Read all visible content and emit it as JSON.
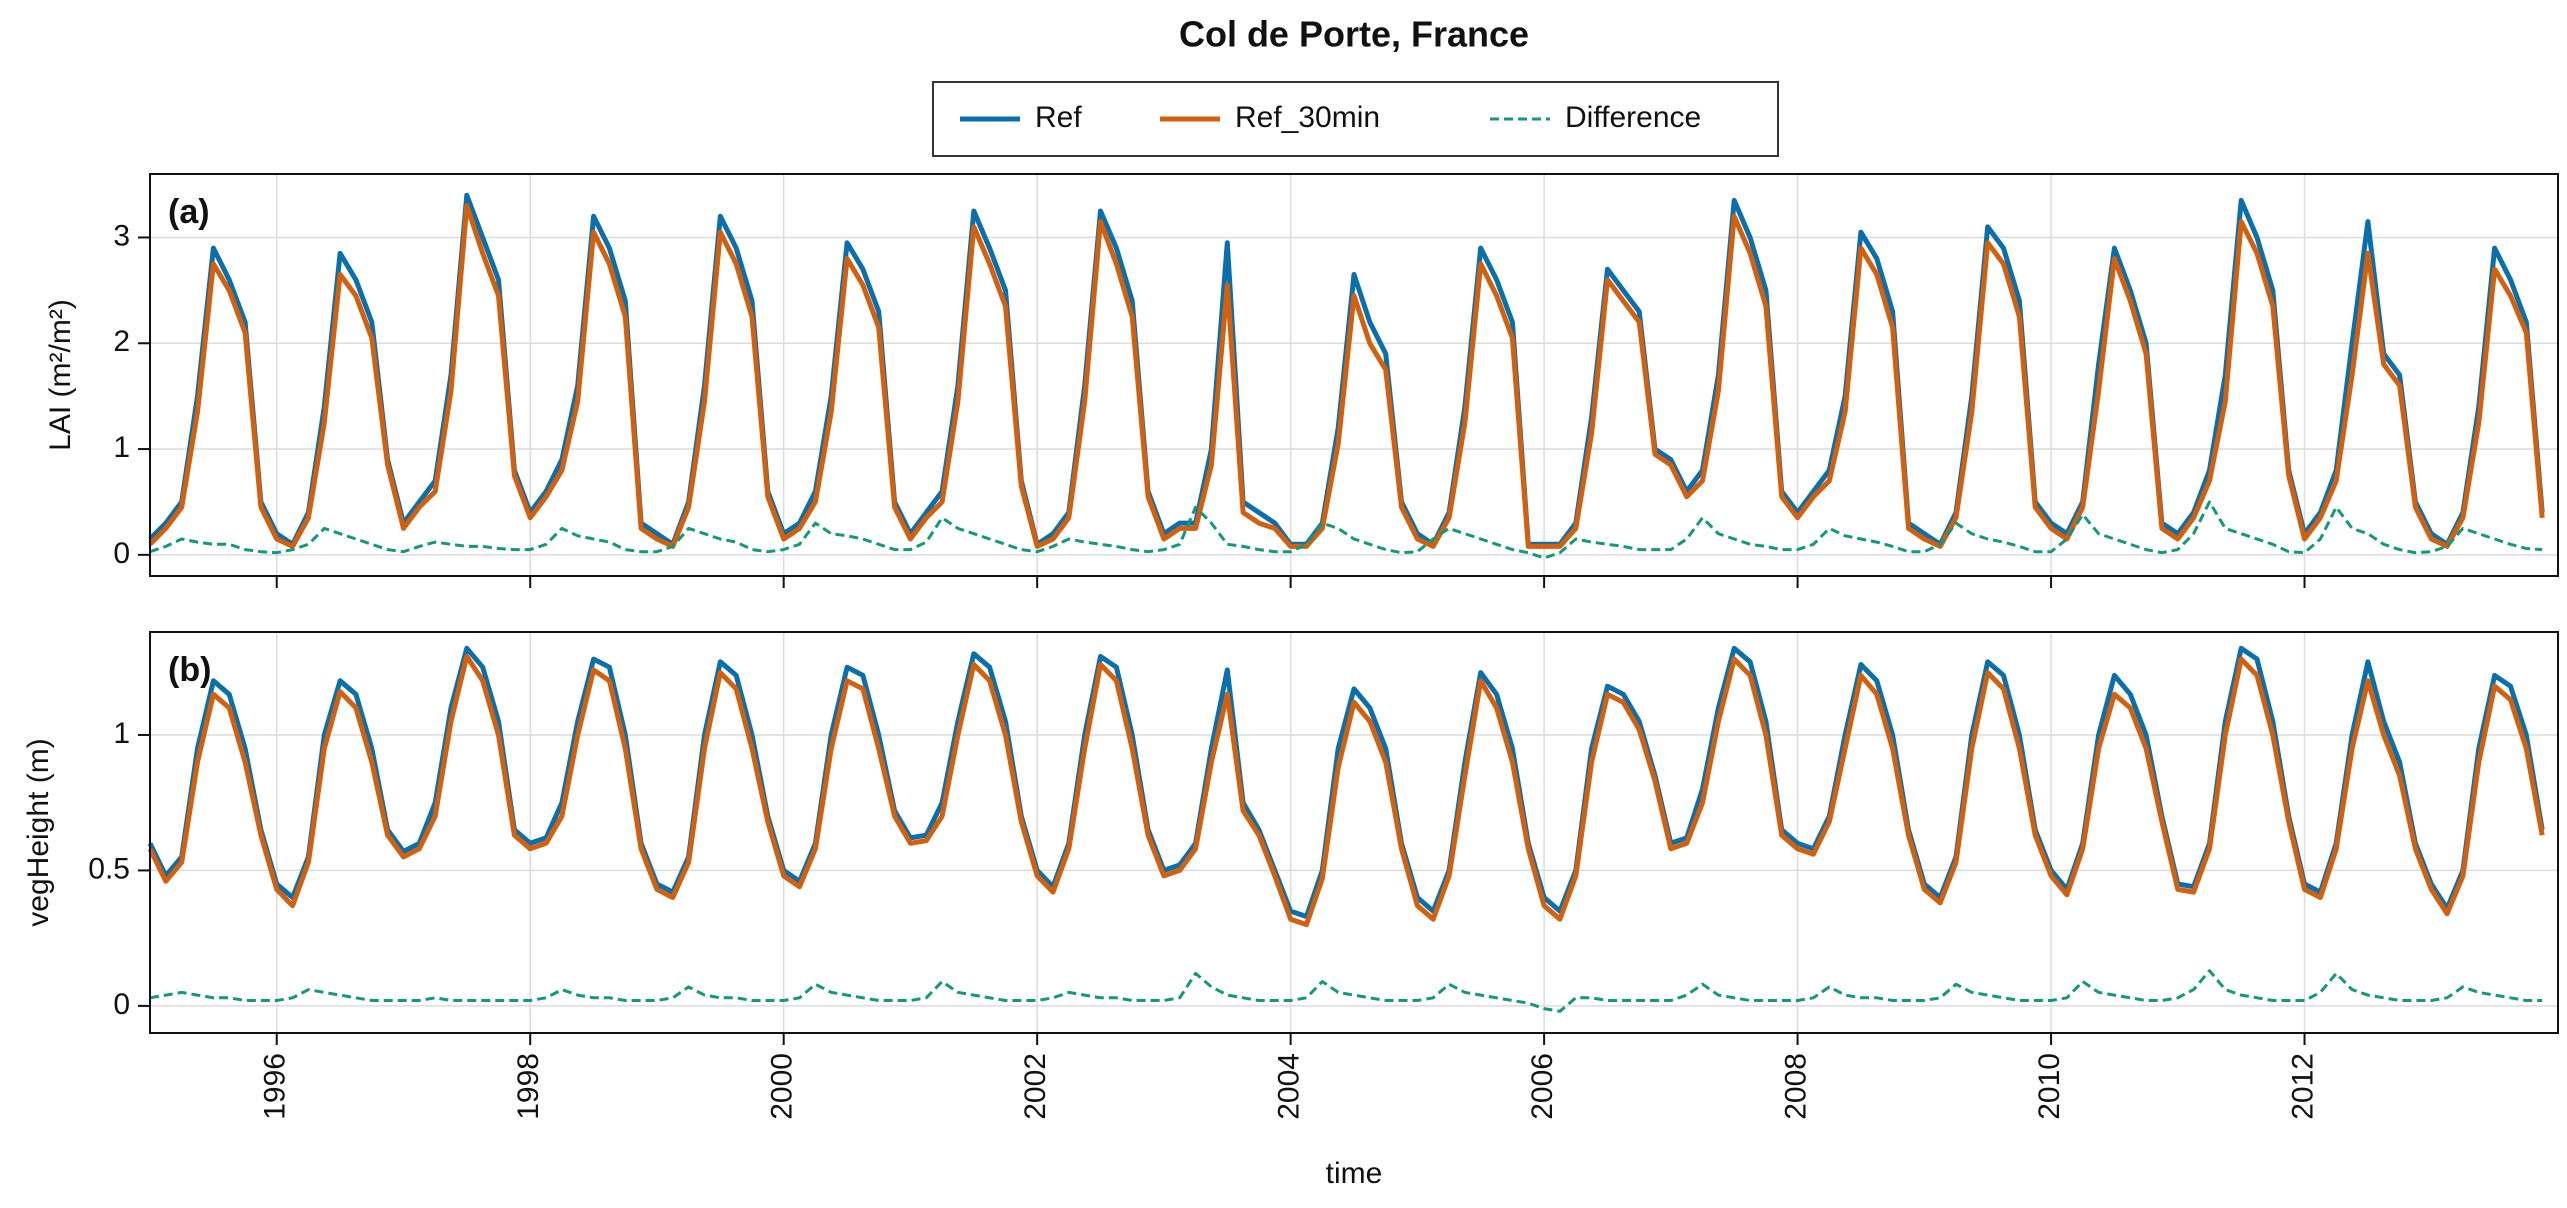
{
  "chart_data": {
    "type": "line",
    "title": "Col de Porte, France",
    "xlabel": "time",
    "legend": "top",
    "xlim": [
      1995,
      2014
    ],
    "xticks": [
      1996,
      1998,
      2000,
      2002,
      2004,
      2006,
      2008,
      2010,
      2012
    ],
    "grid": true,
    "series": [
      {
        "name": "Ref",
        "color": "#0b6fab",
        "linestyle": "solid"
      },
      {
        "name": "Ref_30min",
        "color": "#d2600e",
        "linestyle": "solid"
      },
      {
        "name": "Difference",
        "color": "#11997a",
        "linestyle": "dashed"
      }
    ],
    "x": [
      1995,
      1995.125,
      1995.25,
      1995.375,
      1995.5,
      1995.625,
      1995.75,
      1995.875,
      1996,
      1996.125,
      1996.25,
      1996.375,
      1996.5,
      1996.625,
      1996.75,
      1996.875,
      1997,
      1997.125,
      1997.25,
      1997.375,
      1997.5,
      1997.625,
      1997.75,
      1997.875,
      1998,
      1998.125,
      1998.25,
      1998.375,
      1998.5,
      1998.625,
      1998.75,
      1998.875,
      1999,
      1999.125,
      1999.25,
      1999.375,
      1999.5,
      1999.625,
      1999.75,
      1999.875,
      2000,
      2000.125,
      2000.25,
      2000.375,
      2000.5,
      2000.625,
      2000.75,
      2000.875,
      2001,
      2001.125,
      2001.25,
      2001.375,
      2001.5,
      2001.625,
      2001.75,
      2001.875,
      2002,
      2002.125,
      2002.25,
      2002.375,
      2002.5,
      2002.625,
      2002.75,
      2002.875,
      2003,
      2003.125,
      2003.25,
      2003.375,
      2003.5,
      2003.625,
      2003.75,
      2003.875,
      2004,
      2004.125,
      2004.25,
      2004.375,
      2004.5,
      2004.625,
      2004.75,
      2004.875,
      2005,
      2005.125,
      2005.25,
      2005.375,
      2005.5,
      2005.625,
      2005.75,
      2005.875,
      2006,
      2006.125,
      2006.25,
      2006.375,
      2006.5,
      2006.625,
      2006.75,
      2006.875,
      2007,
      2007.125,
      2007.25,
      2007.375,
      2007.5,
      2007.625,
      2007.75,
      2007.875,
      2008,
      2008.125,
      2008.25,
      2008.375,
      2008.5,
      2008.625,
      2008.75,
      2008.875,
      2009,
      2009.125,
      2009.25,
      2009.375,
      2009.5,
      2009.625,
      2009.75,
      2009.875,
      2010,
      2010.125,
      2010.25,
      2010.375,
      2010.5,
      2010.625,
      2010.75,
      2010.875,
      2011,
      2011.125,
      2011.25,
      2011.375,
      2011.5,
      2011.625,
      2011.75,
      2011.875,
      2012,
      2012.125,
      2012.25,
      2012.375,
      2012.5,
      2012.625,
      2012.75,
      2012.875,
      2013,
      2013.125,
      2013.25,
      2013.375,
      2013.5,
      2013.625,
      2013.75,
      2013.875
    ],
    "panels": [
      {
        "label": "(a)",
        "ylabel": "LAI (m²/m²)",
        "ylim": [
          -0.2,
          3.6
        ],
        "yticks": [
          0,
          1,
          2,
          3
        ],
        "values": [
          [
            0.15,
            0.3,
            0.5,
            1.5,
            2.9,
            2.6,
            2.2,
            0.5,
            0.2,
            0.1,
            0.4,
            1.4,
            2.85,
            2.6,
            2.2,
            0.9,
            0.3,
            0.5,
            0.7,
            1.7,
            3.4,
            3.0,
            2.6,
            0.8,
            0.4,
            0.6,
            0.9,
            1.6,
            3.2,
            2.9,
            2.4,
            0.3,
            0.2,
            0.1,
            0.5,
            1.6,
            3.2,
            2.9,
            2.4,
            0.6,
            0.2,
            0.3,
            0.6,
            1.5,
            2.95,
            2.7,
            2.3,
            0.5,
            0.2,
            0.4,
            0.6,
            1.6,
            3.25,
            2.9,
            2.5,
            0.7,
            0.1,
            0.2,
            0.4,
            1.6,
            3.25,
            2.9,
            2.4,
            0.6,
            0.2,
            0.3,
            0.3,
            1.0,
            2.95,
            0.5,
            0.4,
            0.3,
            0.1,
            0.1,
            0.3,
            1.2,
            2.65,
            2.2,
            1.9,
            0.5,
            0.2,
            0.1,
            0.4,
            1.4,
            2.9,
            2.6,
            2.2,
            0.1,
            0.1,
            0.1,
            0.3,
            1.3,
            2.7,
            2.5,
            2.3,
            1.0,
            0.9,
            0.6,
            0.8,
            1.7,
            3.35,
            3.0,
            2.5,
            0.6,
            0.4,
            0.6,
            0.8,
            1.5,
            3.05,
            2.8,
            2.3,
            0.3,
            0.2,
            0.1,
            0.4,
            1.5,
            3.1,
            2.9,
            2.4,
            0.5,
            0.3,
            0.2,
            0.5,
            1.8,
            2.9,
            2.5,
            2.0,
            0.3,
            0.2,
            0.4,
            0.8,
            1.7,
            3.35,
            3.0,
            2.5,
            0.8,
            0.2,
            0.4,
            0.8,
            2.0,
            3.15,
            1.9,
            1.7,
            0.5,
            0.2,
            0.1,
            0.4,
            1.4,
            2.9,
            2.6,
            2.2,
            0.4
          ],
          [
            0.1,
            0.25,
            0.45,
            1.35,
            2.75,
            2.5,
            2.1,
            0.45,
            0.15,
            0.08,
            0.35,
            1.25,
            2.65,
            2.45,
            2.05,
            0.85,
            0.25,
            0.45,
            0.6,
            1.55,
            3.3,
            2.85,
            2.45,
            0.75,
            0.35,
            0.55,
            0.8,
            1.45,
            3.05,
            2.75,
            2.25,
            0.25,
            0.15,
            0.08,
            0.45,
            1.45,
            3.05,
            2.75,
            2.25,
            0.55,
            0.15,
            0.25,
            0.5,
            1.35,
            2.8,
            2.55,
            2.15,
            0.45,
            0.15,
            0.35,
            0.5,
            1.45,
            3.1,
            2.75,
            2.35,
            0.65,
            0.08,
            0.15,
            0.35,
            1.45,
            3.15,
            2.75,
            2.25,
            0.55,
            0.15,
            0.25,
            0.25,
            0.85,
            2.55,
            0.4,
            0.3,
            0.25,
            0.08,
            0.08,
            0.25,
            1.05,
            2.45,
            2.0,
            1.75,
            0.45,
            0.15,
            0.08,
            0.35,
            1.25,
            2.75,
            2.45,
            2.05,
            0.08,
            0.08,
            0.08,
            0.25,
            1.15,
            2.6,
            2.4,
            2.2,
            0.95,
            0.85,
            0.55,
            0.7,
            1.55,
            3.2,
            2.85,
            2.35,
            0.55,
            0.35,
            0.55,
            0.7,
            1.35,
            2.9,
            2.65,
            2.15,
            0.25,
            0.15,
            0.08,
            0.35,
            1.35,
            2.95,
            2.75,
            2.25,
            0.45,
            0.25,
            0.15,
            0.45,
            1.55,
            2.8,
            2.4,
            1.9,
            0.25,
            0.15,
            0.35,
            0.7,
            1.45,
            3.15,
            2.85,
            2.35,
            0.75,
            0.15,
            0.35,
            0.7,
            1.7,
            2.85,
            1.8,
            1.6,
            0.45,
            0.15,
            0.08,
            0.35,
            1.25,
            2.7,
            2.45,
            2.1,
            0.35
          ],
          [
            0.03,
            0.08,
            0.15,
            0.12,
            0.1,
            0.1,
            0.05,
            0.03,
            0.02,
            0.05,
            0.1,
            0.25,
            0.2,
            0.15,
            0.1,
            0.05,
            0.03,
            0.08,
            0.12,
            0.1,
            0.08,
            0.08,
            0.06,
            0.05,
            0.05,
            0.1,
            0.25,
            0.18,
            0.15,
            0.12,
            0.05,
            0.03,
            0.03,
            0.08,
            0.25,
            0.2,
            0.15,
            0.12,
            0.05,
            0.03,
            0.05,
            0.1,
            0.3,
            0.2,
            0.18,
            0.15,
            0.1,
            0.05,
            0.05,
            0.12,
            0.35,
            0.25,
            0.2,
            0.15,
            0.1,
            0.05,
            0.03,
            0.08,
            0.15,
            0.12,
            0.1,
            0.08,
            0.05,
            0.03,
            0.05,
            0.1,
            0.45,
            0.3,
            0.1,
            0.08,
            0.05,
            0.03,
            0.03,
            0.1,
            0.3,
            0.25,
            0.15,
            0.1,
            0.05,
            0.02,
            0.03,
            0.15,
            0.25,
            0.2,
            0.15,
            0.1,
            0.05,
            0.02,
            -0.03,
            0.02,
            0.15,
            0.12,
            0.1,
            0.08,
            0.05,
            0.05,
            0.05,
            0.15,
            0.35,
            0.2,
            0.15,
            0.1,
            0.08,
            0.05,
            0.05,
            0.1,
            0.25,
            0.18,
            0.15,
            0.12,
            0.08,
            0.03,
            0.03,
            0.1,
            0.3,
            0.2,
            0.15,
            0.12,
            0.08,
            0.03,
            0.03,
            0.15,
            0.38,
            0.2,
            0.15,
            0.1,
            0.05,
            0.02,
            0.05,
            0.2,
            0.5,
            0.25,
            0.2,
            0.15,
            0.1,
            0.03,
            0.02,
            0.15,
            0.45,
            0.25,
            0.2,
            0.1,
            0.05,
            0.02,
            0.03,
            0.08,
            0.25,
            0.2,
            0.15,
            0.1,
            0.06,
            0.05
          ]
        ]
      },
      {
        "label": "(b)",
        "ylabel": "vegHeight (m)",
        "ylim": [
          -0.1,
          1.38
        ],
        "yticks": [
          0,
          0.5,
          1
        ],
        "values": [
          [
            0.6,
            0.48,
            0.55,
            0.95,
            1.2,
            1.15,
            0.95,
            0.65,
            0.45,
            0.4,
            0.55,
            1.0,
            1.2,
            1.15,
            0.95,
            0.65,
            0.57,
            0.6,
            0.75,
            1.1,
            1.32,
            1.25,
            1.05,
            0.65,
            0.6,
            0.62,
            0.75,
            1.05,
            1.28,
            1.25,
            1.0,
            0.6,
            0.45,
            0.42,
            0.55,
            1.0,
            1.27,
            1.22,
            1.0,
            0.7,
            0.5,
            0.46,
            0.6,
            1.0,
            1.25,
            1.22,
            1.0,
            0.72,
            0.62,
            0.63,
            0.75,
            1.05,
            1.3,
            1.25,
            1.05,
            0.7,
            0.5,
            0.44,
            0.6,
            1.0,
            1.29,
            1.25,
            1.0,
            0.65,
            0.5,
            0.52,
            0.6,
            0.95,
            1.24,
            0.75,
            0.65,
            0.5,
            0.35,
            0.33,
            0.5,
            0.95,
            1.17,
            1.1,
            0.95,
            0.6,
            0.4,
            0.35,
            0.5,
            0.9,
            1.23,
            1.15,
            0.95,
            0.6,
            0.4,
            0.35,
            0.5,
            0.95,
            1.18,
            1.15,
            1.05,
            0.85,
            0.6,
            0.62,
            0.8,
            1.1,
            1.32,
            1.27,
            1.05,
            0.65,
            0.6,
            0.58,
            0.7,
            1.0,
            1.26,
            1.2,
            1.0,
            0.65,
            0.45,
            0.4,
            0.55,
            1.0,
            1.27,
            1.22,
            1.0,
            0.65,
            0.5,
            0.43,
            0.6,
            1.0,
            1.22,
            1.15,
            1.0,
            0.7,
            0.45,
            0.44,
            0.6,
            1.05,
            1.32,
            1.28,
            1.05,
            0.7,
            0.45,
            0.42,
            0.6,
            1.0,
            1.27,
            1.05,
            0.9,
            0.6,
            0.45,
            0.36,
            0.5,
            0.95,
            1.22,
            1.18,
            1.0,
            0.65
          ],
          [
            0.58,
            0.46,
            0.53,
            0.9,
            1.15,
            1.1,
            0.9,
            0.63,
            0.43,
            0.37,
            0.53,
            0.95,
            1.16,
            1.1,
            0.9,
            0.63,
            0.55,
            0.58,
            0.7,
            1.05,
            1.29,
            1.2,
            1.0,
            0.63,
            0.58,
            0.6,
            0.7,
            1.0,
            1.24,
            1.2,
            0.95,
            0.58,
            0.43,
            0.4,
            0.53,
            0.95,
            1.23,
            1.17,
            0.95,
            0.68,
            0.48,
            0.44,
            0.58,
            0.95,
            1.2,
            1.17,
            0.95,
            0.7,
            0.6,
            0.61,
            0.7,
            1.0,
            1.26,
            1.2,
            1.0,
            0.68,
            0.48,
            0.42,
            0.58,
            0.95,
            1.26,
            1.2,
            0.95,
            0.63,
            0.48,
            0.5,
            0.58,
            0.9,
            1.15,
            0.72,
            0.63,
            0.48,
            0.32,
            0.3,
            0.47,
            0.88,
            1.12,
            1.05,
            0.9,
            0.58,
            0.37,
            0.32,
            0.48,
            0.85,
            1.2,
            1.1,
            0.9,
            0.58,
            0.37,
            0.32,
            0.48,
            0.9,
            1.15,
            1.12,
            1.02,
            0.83,
            0.58,
            0.6,
            0.75,
            1.05,
            1.28,
            1.22,
            1.0,
            0.63,
            0.58,
            0.56,
            0.68,
            0.95,
            1.22,
            1.15,
            0.95,
            0.63,
            0.43,
            0.38,
            0.53,
            0.95,
            1.23,
            1.17,
            0.95,
            0.63,
            0.48,
            0.41,
            0.58,
            0.95,
            1.15,
            1.1,
            0.95,
            0.68,
            0.43,
            0.42,
            0.58,
            1.0,
            1.28,
            1.22,
            1.0,
            0.68,
            0.43,
            0.4,
            0.58,
            0.95,
            1.2,
            1.0,
            0.85,
            0.58,
            0.43,
            0.34,
            0.48,
            0.9,
            1.18,
            1.13,
            0.95,
            0.63
          ],
          [
            0.03,
            0.04,
            0.05,
            0.04,
            0.03,
            0.03,
            0.02,
            0.02,
            0.02,
            0.03,
            0.06,
            0.05,
            0.04,
            0.03,
            0.02,
            0.02,
            0.02,
            0.02,
            0.03,
            0.02,
            0.02,
            0.02,
            0.02,
            0.02,
            0.02,
            0.03,
            0.06,
            0.04,
            0.03,
            0.03,
            0.02,
            0.02,
            0.02,
            0.03,
            0.07,
            0.04,
            0.03,
            0.03,
            0.02,
            0.02,
            0.02,
            0.03,
            0.08,
            0.05,
            0.04,
            0.03,
            0.02,
            0.02,
            0.02,
            0.03,
            0.09,
            0.05,
            0.04,
            0.03,
            0.02,
            0.02,
            0.02,
            0.03,
            0.05,
            0.04,
            0.03,
            0.03,
            0.02,
            0.02,
            0.02,
            0.03,
            0.12,
            0.07,
            0.04,
            0.03,
            0.02,
            0.02,
            0.02,
            0.03,
            0.09,
            0.05,
            0.04,
            0.03,
            0.02,
            0.02,
            0.02,
            0.03,
            0.08,
            0.05,
            0.04,
            0.03,
            0.02,
            0.01,
            -0.01,
            -0.02,
            0.03,
            0.03,
            0.02,
            0.02,
            0.02,
            0.02,
            0.02,
            0.04,
            0.08,
            0.04,
            0.03,
            0.02,
            0.02,
            0.02,
            0.02,
            0.03,
            0.07,
            0.04,
            0.03,
            0.03,
            0.02,
            0.02,
            0.02,
            0.03,
            0.08,
            0.05,
            0.04,
            0.03,
            0.02,
            0.02,
            0.02,
            0.03,
            0.09,
            0.05,
            0.04,
            0.03,
            0.02,
            0.02,
            0.03,
            0.06,
            0.13,
            0.06,
            0.04,
            0.03,
            0.02,
            0.02,
            0.02,
            0.05,
            0.12,
            0.06,
            0.04,
            0.03,
            0.02,
            0.02,
            0.02,
            0.03,
            0.07,
            0.05,
            0.04,
            0.03,
            0.02,
            0.02
          ]
        ]
      }
    ]
  }
}
